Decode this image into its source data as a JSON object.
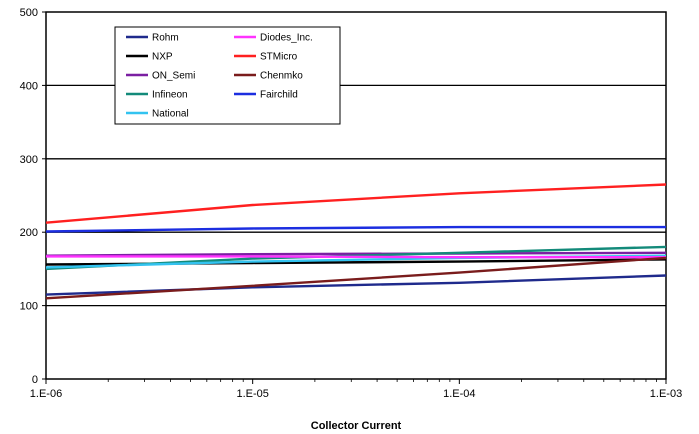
{
  "chart_data": {
    "type": "line",
    "title": "",
    "xlabel": "Collector Current",
    "ylabel": "",
    "x_scale": "log",
    "x": [
      1e-06,
      1e-05,
      0.0001,
      0.001
    ],
    "x_tick_labels": [
      "1.E-06",
      "1.E-05",
      "1.E-04",
      "1.E-03"
    ],
    "ylim": [
      0,
      500
    ],
    "y_ticks": [
      0,
      100,
      200,
      300,
      400,
      500
    ],
    "grid": "horizontal major",
    "legend_position": "top-left",
    "series": [
      {
        "name": "Rohm",
        "color": "#1f2a8c",
        "values": [
          115,
          125,
          131,
          141
        ]
      },
      {
        "name": "NXP",
        "color": "#000000",
        "values": [
          156,
          158,
          160,
          163
        ]
      },
      {
        "name": "ON_Semi",
        "color": "#7b1fa2",
        "values": [
          168,
          170,
          171,
          172
        ]
      },
      {
        "name": "Infineon",
        "color": "#138a7a",
        "values": [
          150,
          164,
          172,
          180
        ]
      },
      {
        "name": "National",
        "color": "#33c3f0",
        "values": [
          152,
          160,
          165,
          168
        ]
      },
      {
        "name": "Diodes_Inc.",
        "color": "#ff33ff",
        "values": [
          167,
          167,
          166,
          166
        ]
      },
      {
        "name": "STMicro",
        "color": "#ff2020",
        "values": [
          213,
          237,
          253,
          265
        ]
      },
      {
        "name": "Chenmko",
        "color": "#7a1c1c",
        "values": [
          110,
          127,
          145,
          165
        ]
      },
      {
        "name": "Fairchild",
        "color": "#1c2ee0",
        "values": [
          201,
          205,
          207,
          207
        ]
      }
    ]
  }
}
